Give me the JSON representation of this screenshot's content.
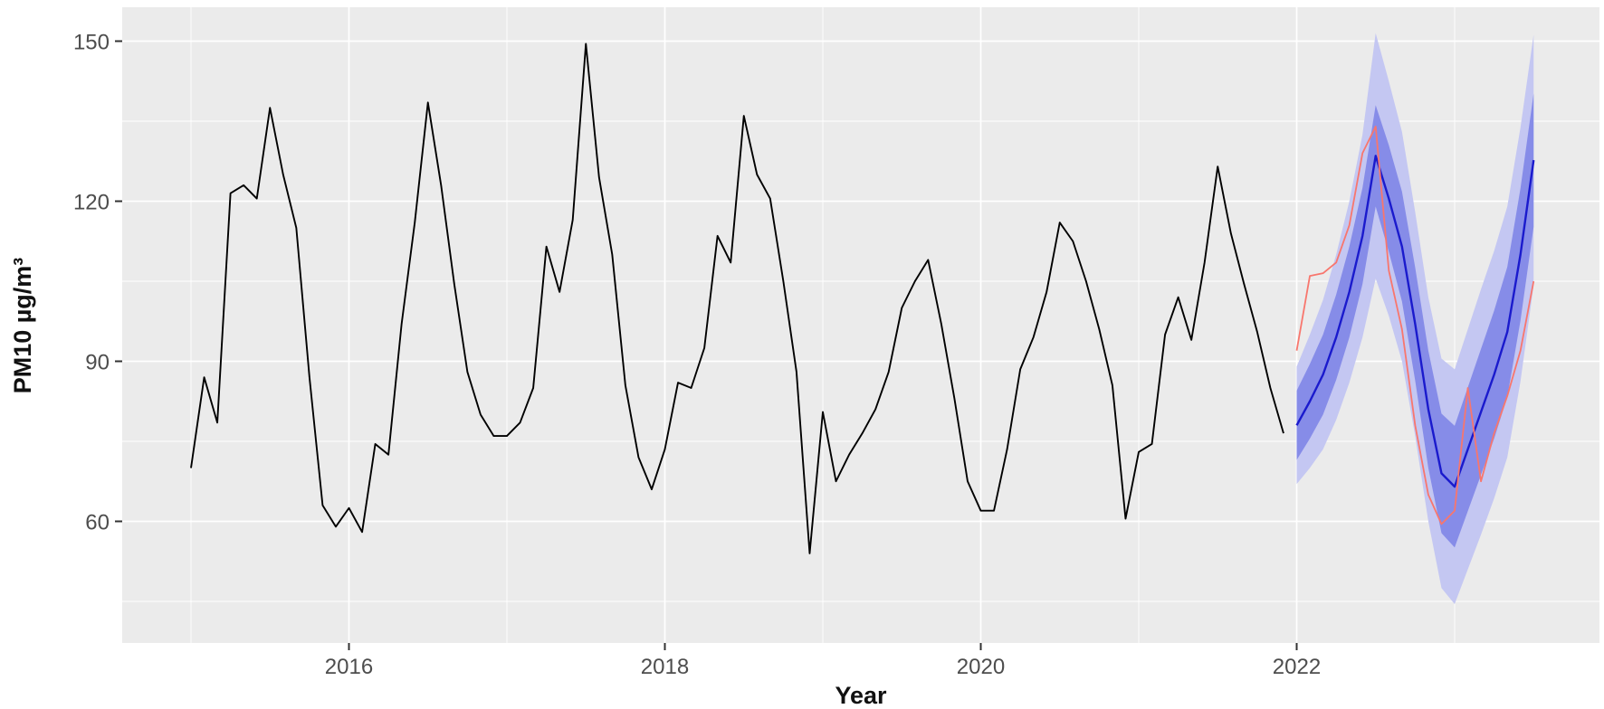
{
  "chart_data": {
    "type": "line",
    "title": "",
    "xlabel": "Year",
    "ylabel": "PM10 µg/m³",
    "x_ticks": [
      2016,
      2018,
      2020,
      2022
    ],
    "x_minor_ticks": [
      2015,
      2017,
      2019,
      2021,
      2023
    ],
    "y_ticks": [
      150,
      120,
      90,
      60
    ],
    "y_minor_ticks": [
      135,
      105,
      75,
      45
    ],
    "xlim": [
      2014.56,
      2023.91
    ],
    "ylim": [
      37.2,
      156.4
    ],
    "grid": "on",
    "legend": "none",
    "colors": {
      "panel_bg": "#ebebeb",
      "grid": "#ffffff",
      "observed": "#000000",
      "forecast_mean": "#1a1acd",
      "band_inner": "#868ce8",
      "band_outer": "#c4c7f2",
      "actual": "#f8766d",
      "tick_text": "#4d4d4d",
      "tick_mark": "#333333"
    },
    "series": [
      {
        "name": "observed PM10 (monthly)",
        "start": 2015.0,
        "step_years": 0.0833333,
        "values": [
          70,
          87,
          78.5,
          121.5,
          123,
          120.5,
          137.5,
          125,
          115,
          87,
          63,
          59,
          62.5,
          58,
          74.5,
          72.5,
          97,
          116,
          138.5,
          123,
          104.5,
          88,
          80,
          76,
          76,
          78.5,
          85,
          111.5,
          103,
          116.5,
          149.5,
          124.5,
          110,
          85.5,
          72,
          66,
          73.5,
          86,
          85,
          92.5,
          113.5,
          108.5,
          136,
          125,
          120.5,
          105,
          88,
          54,
          80.5,
          67.5,
          72.5,
          76.5,
          81,
          88,
          100,
          105,
          109,
          97,
          83,
          67.5,
          62,
          62,
          73.5,
          88.5,
          94.5,
          103,
          116,
          112.5,
          105,
          96,
          85.5,
          60.5,
          73,
          74.5,
          95,
          102,
          94,
          108.5,
          126.5,
          114,
          104.5,
          95.5,
          85,
          76.5
        ]
      },
      {
        "name": "forecast mean",
        "start": 2022.0,
        "step_years": 0.0833333,
        "values": [
          78,
          82.5,
          87.5,
          94.5,
          103,
          113.5,
          128.5,
          120.5,
          111.5,
          97,
          81,
          69,
          66.5,
          73.5,
          80.5,
          87.5,
          95.5,
          110,
          127.7
        ]
      },
      {
        "name": "actual (red)",
        "start": 2022.0,
        "step_years": 0.0833333,
        "values": [
          92,
          106,
          106.5,
          108.5,
          115.5,
          129,
          134,
          107,
          96,
          78,
          65,
          59.5,
          62,
          85,
          67.5,
          76.5,
          83.5,
          92,
          105
        ]
      }
    ],
    "bands": {
      "start": 2022.0,
      "step_years": 0.0833333,
      "inner_lo": [
        71.5,
        75.5,
        80,
        86.5,
        94.5,
        104.5,
        119,
        110.5,
        101.2,
        86.4,
        70,
        57.8,
        55.1,
        61.9,
        68.7,
        75.5,
        83.3,
        97.6,
        115.2
      ],
      "inner_hi": [
        84.5,
        89.5,
        95,
        102.5,
        111.5,
        122.5,
        138,
        130.5,
        121.8,
        107.6,
        92,
        80.2,
        77.9,
        85.1,
        92.3,
        99.5,
        107.7,
        122.4,
        140.2
      ],
      "outer_lo": [
        67,
        70,
        73.5,
        79,
        86,
        94.5,
        105.5,
        98.5,
        90,
        76,
        60,
        47.5,
        44.5,
        51,
        57.5,
        64.3,
        72,
        86.2,
        104.2
      ],
      "outer_hi": [
        89,
        95,
        101.5,
        110,
        120,
        132.5,
        151.5,
        142.5,
        133,
        118,
        102,
        90.5,
        88.5,
        96,
        103.5,
        110.7,
        119,
        133.8,
        151.2
      ]
    }
  }
}
